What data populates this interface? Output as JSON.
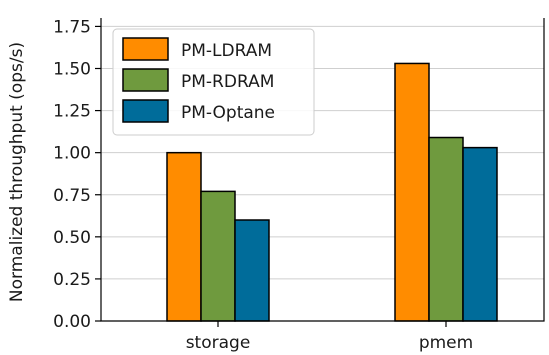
{
  "chart_data": {
    "type": "bar",
    "title": "",
    "xlabel": "",
    "ylabel": "Normalized throughput (ops/s)",
    "ylim": [
      0,
      1.8
    ],
    "yticks": [
      0.0,
      0.25,
      0.5,
      0.75,
      1.0,
      1.25,
      1.5,
      1.75
    ],
    "ytick_labels": [
      "0.00",
      "0.25",
      "0.50",
      "0.75",
      "1.00",
      "1.25",
      "1.50",
      "1.75"
    ],
    "categories": [
      "storage",
      "pmem"
    ],
    "grid": "horizontal",
    "legend_position": "top-left",
    "series": [
      {
        "name": "PM-LDRAM",
        "color": "#ff8c00",
        "values": [
          1.0,
          1.53
        ]
      },
      {
        "name": "PM-RDRAM",
        "color": "#6f9a3e",
        "values": [
          0.77,
          1.09
        ]
      },
      {
        "name": "PM-Optane",
        "color": "#006c9a",
        "values": [
          0.6,
          1.03
        ]
      }
    ]
  }
}
